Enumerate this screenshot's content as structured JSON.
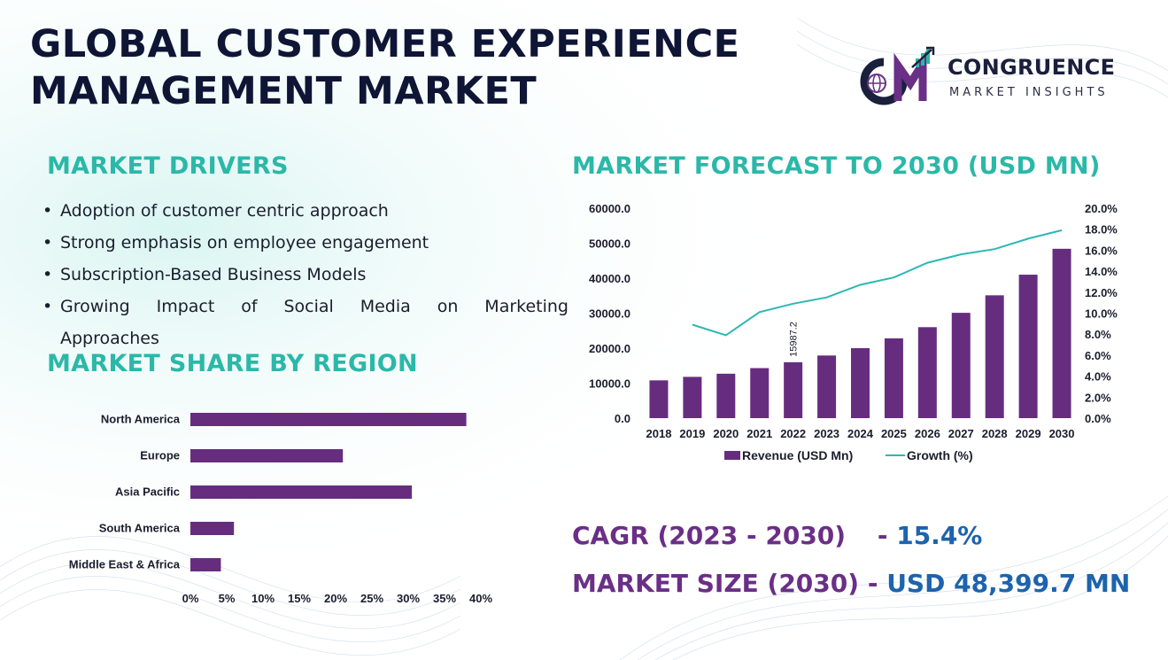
{
  "header": {
    "title_line1": "GLOBAL CUSTOMER EXPERIENCE",
    "title_line2": "MANAGEMENT MARKET"
  },
  "logo": {
    "monogram": "CM",
    "name": "CONGRUENCE",
    "tagline": "MARKET INSIGHTS"
  },
  "drivers": {
    "heading": "MARKET DRIVERS",
    "items": [
      "Adoption of customer centric approach",
      "Strong emphasis on employee engagement",
      "Subscription-Based Business Models",
      "Growing Impact of Social Media on Marketing",
      "Approaches"
    ]
  },
  "region": {
    "heading": "MARKET SHARE BY REGION"
  },
  "forecast": {
    "heading": "MARKET FORECAST TO 2030 (USD MN)"
  },
  "stats": {
    "cagr_label": "CAGR (2023 - 2030)",
    "cagr_dash": "-",
    "cagr_value": "15.4%",
    "size_label": "MARKET SIZE (2030)",
    "size_dash": "-",
    "size_value": "USD  48,399.7 MN"
  },
  "colors": {
    "bar": "#662d7f",
    "line": "#2cb8b4",
    "heading": "#2bb8a8",
    "stat_label": "#6a2f86",
    "stat_value": "#1d63ad"
  },
  "chart_data": [
    {
      "type": "bar",
      "orientation": "horizontal",
      "categories": [
        "North America",
        "Europe",
        "Asia Pacific",
        "South America",
        "Middle East & Africa"
      ],
      "values": [
        38,
        21,
        30.5,
        6,
        4.2
      ],
      "xlim": [
        0,
        40
      ],
      "x_ticks": [
        "0%",
        "5%",
        "10%",
        "15%",
        "20%",
        "25%",
        "30%",
        "35%",
        "40%"
      ],
      "grid": false,
      "legend": "none"
    },
    {
      "type": "bar",
      "categories": [
        "2018",
        "2019",
        "2020",
        "2021",
        "2022",
        "2023",
        "2024",
        "2025",
        "2026",
        "2027",
        "2028",
        "2029",
        "2030"
      ],
      "series": [
        {
          "name": "Revenue (USD Mn)",
          "type": "bar",
          "axis": "left",
          "values": [
            10800,
            11800,
            12700,
            14300,
            15987.2,
            17900,
            20000,
            22800,
            26000,
            30100,
            35100,
            41000,
            48399.7
          ]
        },
        {
          "name": "Growth (%)",
          "type": "line",
          "axis": "right",
          "values": [
            null,
            8.9,
            7.9,
            10.1,
            10.9,
            11.5,
            12.7,
            13.4,
            14.8,
            15.6,
            16.1,
            17.1,
            17.9
          ]
        }
      ],
      "data_labels": [
        {
          "category": "2022",
          "text": "15987.2"
        }
      ],
      "ylim_left": [
        0,
        60000
      ],
      "y_ticks_left": [
        "0.0",
        "10000.0",
        "20000.0",
        "30000.0",
        "40000.0",
        "50000.0",
        "60000.0"
      ],
      "ylim_right": [
        0,
        20
      ],
      "y_ticks_right": [
        "0.0%",
        "2.0%",
        "4.0%",
        "6.0%",
        "8.0%",
        "10.0%",
        "12.0%",
        "14.0%",
        "16.0%",
        "18.0%",
        "20.0%"
      ],
      "grid": false,
      "legend": "bottom"
    }
  ]
}
